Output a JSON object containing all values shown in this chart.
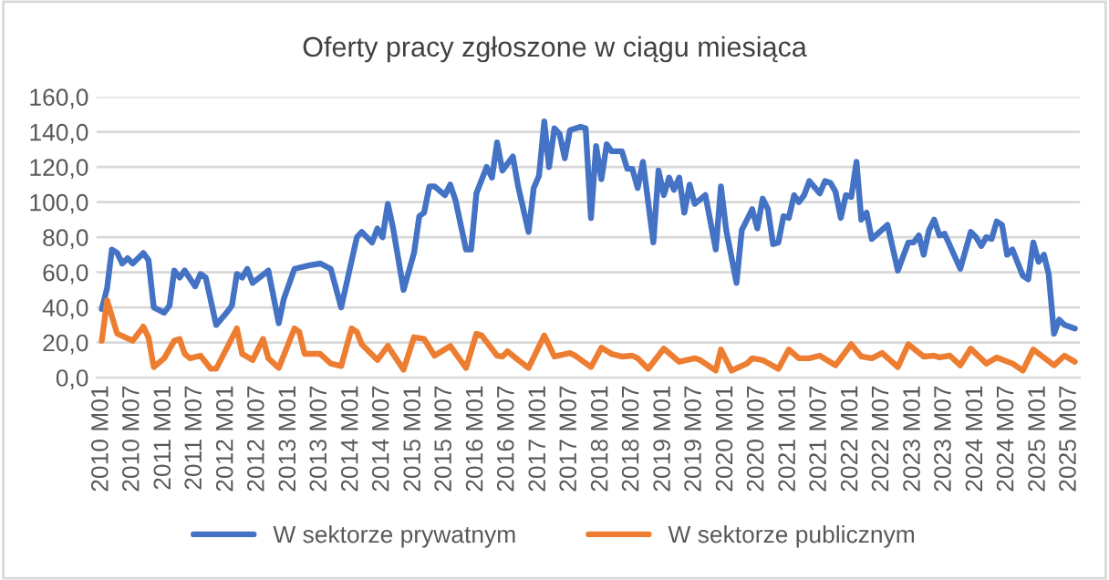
{
  "chart_data": {
    "type": "line",
    "title": "Oferty pracy zgłoszone w ciągu miesiąca",
    "series": [
      {
        "name": "W sektorze prywatnym",
        "color": "#4472c4",
        "x": [
          "2010-01",
          "2010-02",
          "2010-03",
          "2010-04",
          "2010-05",
          "2010-06",
          "2010-07",
          "2010-09",
          "2010-10",
          "2010-11",
          "2011-01",
          "2011-02",
          "2011-03",
          "2011-04",
          "2011-05",
          "2011-07",
          "2011-08",
          "2011-09",
          "2011-11",
          "2012-01",
          "2012-02",
          "2012-03",
          "2012-04",
          "2012-05",
          "2012-06",
          "2012-09",
          "2012-11",
          "2012-12",
          "2013-02",
          "2013-05",
          "2013-07",
          "2013-09",
          "2013-11",
          "2014-02",
          "2014-03",
          "2014-05",
          "2014-06",
          "2014-07",
          "2014-08",
          "2014-09",
          "2014-11",
          "2015-01",
          "2015-02",
          "2015-03",
          "2015-04",
          "2015-05",
          "2015-07",
          "2015-08",
          "2015-09",
          "2015-11",
          "2015-12",
          "2016-01",
          "2016-03",
          "2016-04",
          "2016-05",
          "2016-06",
          "2016-08",
          "2016-09",
          "2016-11",
          "2016-12",
          "2017-01",
          "2017-02",
          "2017-03",
          "2017-04",
          "2017-05",
          "2017-06",
          "2017-07",
          "2017-09",
          "2017-10",
          "2017-11",
          "2017-12",
          "2018-01",
          "2018-02",
          "2018-03",
          "2018-05",
          "2018-06",
          "2018-07",
          "2018-08",
          "2018-09",
          "2018-11",
          "2018-12",
          "2019-01",
          "2019-02",
          "2019-03",
          "2019-04",
          "2019-05",
          "2019-06",
          "2019-07",
          "2019-09",
          "2019-11",
          "2019-12",
          "2020-01",
          "2020-03",
          "2020-04",
          "2020-06",
          "2020-07",
          "2020-08",
          "2020-09",
          "2020-10",
          "2020-11",
          "2020-12",
          "2021-01",
          "2021-02",
          "2021-03",
          "2021-04",
          "2021-05",
          "2021-07",
          "2021-08",
          "2021-09",
          "2021-10",
          "2021-11",
          "2021-12",
          "2022-01",
          "2022-02",
          "2022-03",
          "2022-04",
          "2022-05",
          "2022-08",
          "2022-10",
          "2022-12",
          "2023-01",
          "2023-02",
          "2023-03",
          "2023-04",
          "2023-05",
          "2023-06",
          "2023-07",
          "2023-10",
          "2023-12",
          "2024-01",
          "2024-02",
          "2024-03",
          "2024-04",
          "2024-05",
          "2024-06",
          "2024-07",
          "2024-08",
          "2024-10",
          "2024-11",
          "2024-12",
          "2025-01",
          "2025-02",
          "2025-03",
          "2025-04",
          "2025-05",
          "2025-06",
          "2025-08"
        ],
        "values": [
          39,
          51,
          73,
          71,
          65,
          68,
          65,
          71,
          67,
          40,
          37,
          41,
          61,
          57,
          61,
          52,
          59,
          57,
          30,
          37,
          41,
          59,
          57,
          62,
          54,
          61,
          31,
          45,
          62,
          64,
          65,
          62,
          40,
          80,
          83,
          77,
          85,
          80,
          99,
          85,
          50,
          71,
          92,
          94,
          109,
          109,
          104,
          110,
          101,
          73,
          73,
          105,
          120,
          114,
          134,
          118,
          126,
          109,
          83,
          108,
          115,
          146,
          120,
          142,
          139,
          125,
          141,
          143,
          142,
          91,
          132,
          113,
          133,
          129,
          129,
          119,
          119,
          108,
          123,
          77,
          118,
          104,
          114,
          107,
          114,
          94,
          110,
          99,
          104,
          73,
          109,
          84,
          54,
          84,
          96,
          85,
          102,
          96,
          76,
          77,
          92,
          91,
          104,
          100,
          104,
          112,
          105,
          112,
          111,
          106,
          91,
          104,
          103,
          123,
          90,
          94,
          79,
          87,
          61,
          77,
          77,
          81,
          70,
          84,
          90,
          81,
          82,
          62,
          83,
          80,
          75,
          80,
          79,
          89,
          87,
          70,
          73,
          58,
          56,
          77,
          66,
          70,
          59,
          25,
          33,
          30,
          28
        ]
      },
      {
        "name": "W sektorze publicznym",
        "color": "#ed7d31",
        "x": [
          "2010-01",
          "2010-02",
          "2010-04",
          "2010-07",
          "2010-09",
          "2010-10",
          "2010-11",
          "2011-01",
          "2011-03",
          "2011-04",
          "2011-05",
          "2011-06",
          "2011-08",
          "2011-10",
          "2011-11",
          "2012-03",
          "2012-04",
          "2012-06",
          "2012-08",
          "2012-09",
          "2012-11",
          "2013-02",
          "2013-03",
          "2013-04",
          "2013-07",
          "2013-09",
          "2013-11",
          "2014-01",
          "2014-02",
          "2014-03",
          "2014-06",
          "2014-08",
          "2014-11",
          "2015-01",
          "2015-03",
          "2015-05",
          "2015-08",
          "2015-11",
          "2016-01",
          "2016-02",
          "2016-05",
          "2016-06",
          "2016-07",
          "2016-09",
          "2016-11",
          "2017-02",
          "2017-04",
          "2017-07",
          "2017-08",
          "2017-11",
          "2018-01",
          "2018-03",
          "2018-05",
          "2018-07",
          "2018-08",
          "2018-10",
          "2019-01",
          "2019-04",
          "2019-07",
          "2019-08",
          "2019-11",
          "2019-12",
          "2020-02",
          "2020-05",
          "2020-06",
          "2020-08",
          "2020-11",
          "2021-01",
          "2021-03",
          "2021-05",
          "2021-07",
          "2021-10",
          "2022-01",
          "2022-03",
          "2022-05",
          "2022-07",
          "2022-10",
          "2022-12",
          "2023-03",
          "2023-05",
          "2023-06",
          "2023-08",
          "2023-10",
          "2023-12",
          "2024-03",
          "2024-05",
          "2024-08",
          "2024-10",
          "2024-12",
          "2025-04",
          "2025-06",
          "2025-08"
        ],
        "values": [
          21,
          44,
          25,
          21,
          29,
          23,
          6,
          11,
          21,
          22,
          13.5,
          11,
          12.5,
          5,
          5,
          28,
          13.5,
          10,
          22,
          11,
          5.5,
          28,
          26,
          13.5,
          13.5,
          8,
          6.6,
          28,
          26,
          19,
          10,
          18,
          4.5,
          23,
          22,
          12.5,
          18,
          5.5,
          25,
          24,
          12.5,
          12,
          15,
          10,
          5.5,
          24,
          12,
          14,
          12.5,
          6,
          17,
          13.5,
          12,
          12.5,
          11,
          5,
          16.5,
          9,
          11,
          10,
          4,
          16,
          4,
          8,
          11,
          10,
          5,
          16,
          11,
          11,
          12.5,
          7,
          19,
          12,
          11,
          14,
          6,
          19,
          12,
          12.5,
          11.5,
          12.5,
          7,
          16.5,
          8,
          11.5,
          8,
          4,
          16,
          7,
          12.5,
          9
        ]
      }
    ],
    "xlim": [
      "2009-12",
      "2025-09"
    ],
    "xticks": [
      {
        "value": "2010-01",
        "label": "2010 M01"
      },
      {
        "value": "2010-07",
        "label": "2010 M07"
      },
      {
        "value": "2011-01",
        "label": "2011 M01"
      },
      {
        "value": "2011-07",
        "label": "2011 M07"
      },
      {
        "value": "2012-01",
        "label": "2012 M01"
      },
      {
        "value": "2012-07",
        "label": "2012 M07"
      },
      {
        "value": "2013-01",
        "label": "2013 M01"
      },
      {
        "value": "2013-07",
        "label": "2013 M07"
      },
      {
        "value": "2014-01",
        "label": "2014 M01"
      },
      {
        "value": "2014-07",
        "label": "2014 M07"
      },
      {
        "value": "2015-01",
        "label": "2015 M01"
      },
      {
        "value": "2015-07",
        "label": "2015 M07"
      },
      {
        "value": "2016-01",
        "label": "2016 M01"
      },
      {
        "value": "2016-07",
        "label": "2016 M07"
      },
      {
        "value": "2017-01",
        "label": "2017 M01"
      },
      {
        "value": "2017-07",
        "label": "2017 M07"
      },
      {
        "value": "2018-01",
        "label": "2018 M01"
      },
      {
        "value": "2018-07",
        "label": "2018 M07"
      },
      {
        "value": "2019-01",
        "label": "2019 M01"
      },
      {
        "value": "2019-07",
        "label": "2019 M07"
      },
      {
        "value": "2020-01",
        "label": "2020 M01"
      },
      {
        "value": "2020-07",
        "label": "2020 M07"
      },
      {
        "value": "2021-01",
        "label": "2021 M01"
      },
      {
        "value": "2021-07",
        "label": "2021 M07"
      },
      {
        "value": "2022-01",
        "label": "2022 M01"
      },
      {
        "value": "2022-07",
        "label": "2022 M07"
      },
      {
        "value": "2023-01",
        "label": "2023 M01"
      },
      {
        "value": "2023-07",
        "label": "2023 M07"
      },
      {
        "value": "2024-01",
        "label": "2024 M01"
      },
      {
        "value": "2024-07",
        "label": "2024 M07"
      },
      {
        "value": "2025-01",
        "label": "2025 M01"
      },
      {
        "value": "2025-07",
        "label": "2025 M07"
      }
    ],
    "ylim": [
      0,
      160
    ],
    "yticks": [
      {
        "value": 0,
        "label": "0,0"
      },
      {
        "value": 20,
        "label": "20,0"
      },
      {
        "value": 40,
        "label": "40,0"
      },
      {
        "value": 60,
        "label": "60,0"
      },
      {
        "value": 80,
        "label": "80,0"
      },
      {
        "value": 100,
        "label": "100,0"
      },
      {
        "value": 120,
        "label": "120,0"
      },
      {
        "value": 140,
        "label": "140,0"
      },
      {
        "value": 160,
        "label": "160,0"
      }
    ],
    "grid": "y",
    "legend": "bottom",
    "marker": "none",
    "line_style": "solid"
  }
}
